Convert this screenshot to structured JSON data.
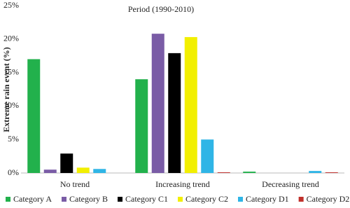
{
  "chart_data": {
    "type": "bar",
    "title": "Period (1990-2010)",
    "y_label": "Extreme rain event (%)",
    "categories": [
      "No trend",
      "Increasing trend",
      "Decreasing trend"
    ],
    "series": [
      {
        "name": "Category A",
        "color": "#22b14c",
        "values": [
          17,
          14,
          0.2
        ]
      },
      {
        "name": "Category B",
        "color": "#7a5ca6",
        "values": [
          0.5,
          20.8,
          0
        ]
      },
      {
        "name": "Category C1",
        "color": "#000000",
        "values": [
          2.9,
          17.9,
          0
        ]
      },
      {
        "name": "Category C2",
        "color": "#f2ef00",
        "values": [
          0.8,
          20.3,
          0
        ]
      },
      {
        "name": "Category D1",
        "color": "#2fb5e6",
        "values": [
          0.6,
          5,
          0.3
        ]
      },
      {
        "name": "Category D2",
        "color": "#c0302b",
        "values": [
          0,
          0.1,
          0.1
        ]
      }
    ],
    "ylim": [
      0,
      25
    ],
    "yticks": [
      {
        "value": 0,
        "label": "0%"
      },
      {
        "value": 5,
        "label": "5%"
      },
      {
        "value": 10,
        "label": "10%"
      },
      {
        "value": 15,
        "label": "15%"
      },
      {
        "value": 20,
        "label": "20%"
      },
      {
        "value": 25,
        "label": "25%"
      }
    ],
    "grid": false,
    "legend": "bottom"
  }
}
